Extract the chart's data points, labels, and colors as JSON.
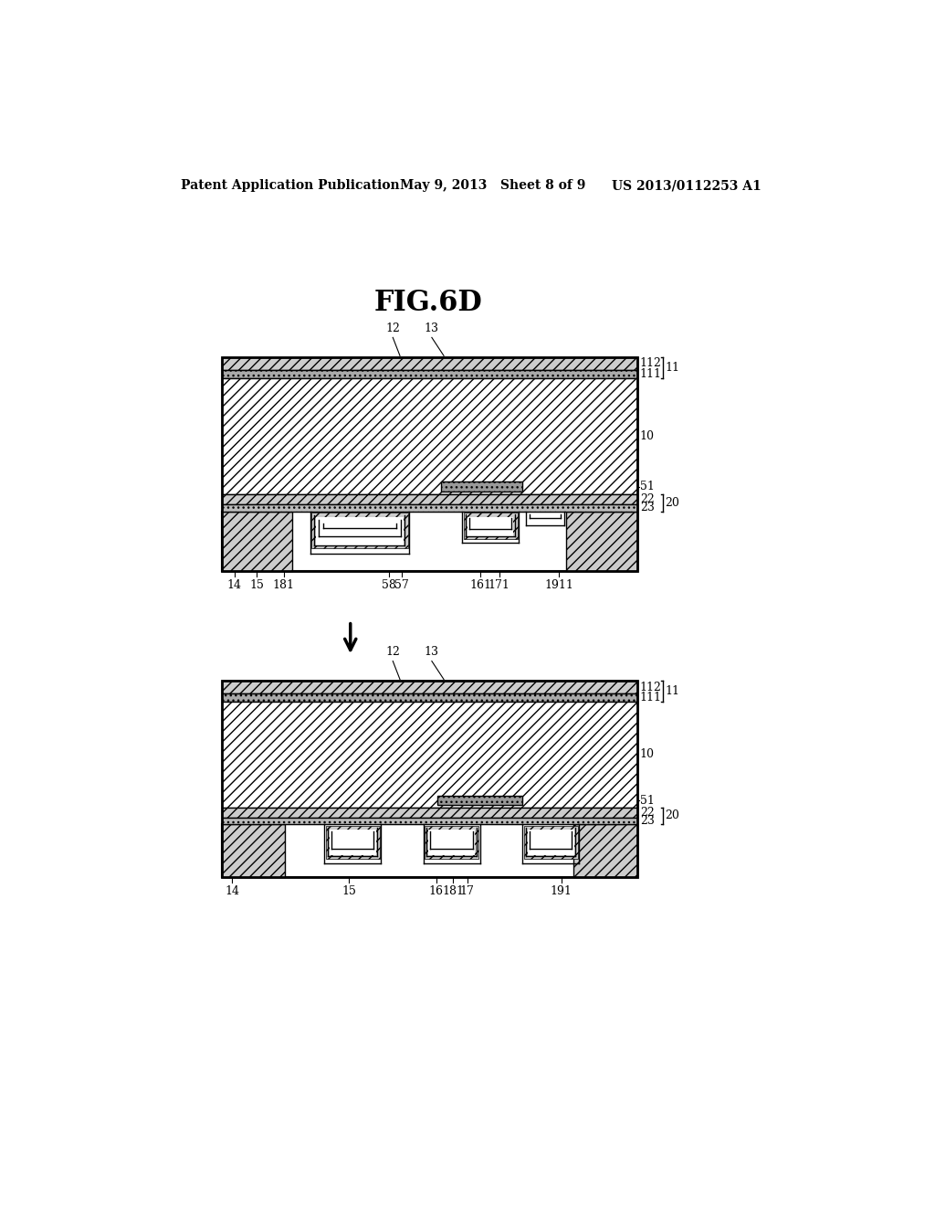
{
  "title": "FIG.6D",
  "header_left": "Patent Application Publication",
  "header_mid": "May 9, 2013   Sheet 8 of 9",
  "header_right": "US 2013/0112253 A1",
  "bg_color": "#ffffff",
  "text_color": "#000000"
}
